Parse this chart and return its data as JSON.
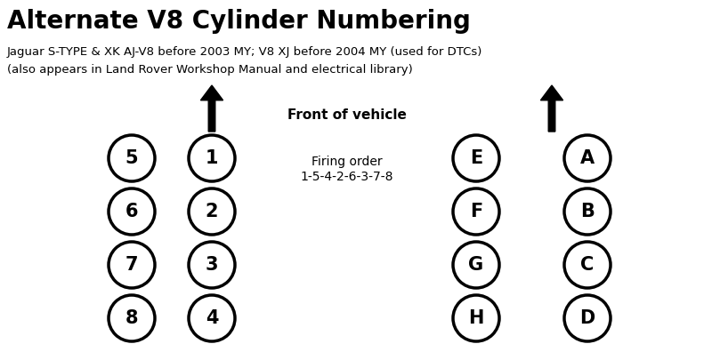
{
  "title": "Alternate V8 Cylinder Numbering",
  "subtitle1": "Jaguar S-TYPE & XK AJ-V8 before 2003 MY; V8 XJ before 2004 MY (used for DTCs)",
  "subtitle2": "(also appears in Land Rover Workshop Manual and electrical library)",
  "front_label": "Front of vehicle",
  "firing_order_line1": "Firing order",
  "firing_order_line2": "1-5-4-2-6-3-7-8",
  "bg_color": "#ffffff",
  "title_color": "#000000",
  "text_color": "#000000",
  "left_bank_numbers": [
    "5",
    "6",
    "7",
    "8"
  ],
  "inner_left_numbers": [
    "1",
    "2",
    "3",
    "4"
  ],
  "inner_right_letters": [
    "E",
    "F",
    "G",
    "H"
  ],
  "outer_right_letters": [
    "A",
    "B",
    "C",
    "D"
  ]
}
